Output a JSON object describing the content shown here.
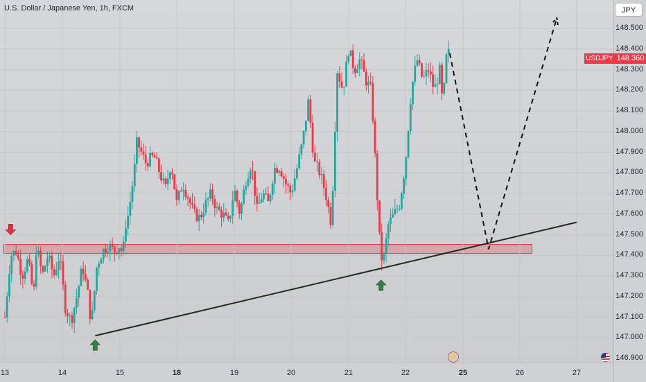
{
  "header": {
    "title": "U.S. Dollar / Japanese Yen, 1h, FXCM"
  },
  "currency_button": "JPY",
  "last_price": {
    "ticker": "USDJPY",
    "value": "148.360"
  },
  "colors": {
    "up": "#26a69a",
    "down": "#f23645",
    "zone": "#f23645",
    "trendline": "#1f2d1f",
    "arrow_up": "#3c7a46",
    "arrow_down": "#e8303b"
  },
  "icons": {
    "flash": "flash-icon",
    "flag": "us-flag-icon"
  },
  "chart_data": {
    "type": "candlestick",
    "symbol": "USDJPY",
    "interval": "1h",
    "ylim": [
      146.89,
      148.56
    ],
    "y_ticks": [
      "148.500",
      "148.400",
      "148.300",
      "148.200",
      "148.100",
      "148.000",
      "147.900",
      "147.800",
      "147.700",
      "147.600",
      "147.500",
      "147.400",
      "147.300",
      "147.200",
      "147.100",
      "147.000",
      "146.900"
    ],
    "x_ticks": [
      {
        "label": "13",
        "x": 0
      },
      {
        "label": "14",
        "x": 1
      },
      {
        "label": "15",
        "x": 2
      },
      {
        "label": "18",
        "x": 3,
        "bold": true
      },
      {
        "label": "19",
        "x": 4
      },
      {
        "label": "20",
        "x": 5
      },
      {
        "label": "21",
        "x": 6
      },
      {
        "label": "22",
        "x": 7
      },
      {
        "label": "25",
        "x": 8,
        "bold": true
      },
      {
        "label": "26",
        "x": 9
      },
      {
        "label": "27",
        "x": 10
      }
    ],
    "support_zone": [
      147.405,
      147.455
    ],
    "trendline": [
      {
        "x": 1.57,
        "y": 147.01
      },
      {
        "x": 10.65,
        "y": 147.56
      }
    ],
    "projection": [
      {
        "x": 7.77,
        "y": 148.38
      },
      {
        "x": 8.45,
        "y": 147.43
      },
      {
        "x": 9.65,
        "y": 148.55
      }
    ],
    "markers": [
      {
        "type": "down",
        "x": 0.1,
        "y": 147.5
      },
      {
        "type": "up",
        "x": 1.57,
        "y": 146.99
      },
      {
        "type": "up",
        "x": 6.57,
        "y": 147.28
      }
    ],
    "close_path": [
      [
        0.0,
        147.1
      ],
      [
        0.1,
        147.4
      ],
      [
        0.2,
        147.42
      ],
      [
        0.3,
        147.3
      ],
      [
        0.4,
        147.38
      ],
      [
        0.5,
        147.2
      ],
      [
        0.55,
        147.45
      ],
      [
        0.65,
        147.3
      ],
      [
        0.75,
        147.4
      ],
      [
        0.85,
        147.3
      ],
      [
        0.95,
        147.4
      ],
      [
        1.05,
        147.15
      ],
      [
        1.15,
        147.08
      ],
      [
        1.25,
        147.2
      ],
      [
        1.35,
        147.35
      ],
      [
        1.45,
        147.2
      ],
      [
        1.5,
        147.06
      ],
      [
        1.6,
        147.35
      ],
      [
        1.7,
        147.42
      ],
      [
        1.8,
        147.45
      ],
      [
        1.9,
        147.42
      ],
      [
        2.0,
        147.45
      ],
      [
        2.05,
        147.4
      ],
      [
        2.1,
        147.55
      ],
      [
        2.15,
        147.6
      ],
      [
        2.25,
        147.8
      ],
      [
        2.3,
        147.95
      ],
      [
        2.45,
        147.85
      ],
      [
        2.6,
        147.88
      ],
      [
        2.7,
        147.8
      ],
      [
        2.8,
        147.72
      ],
      [
        2.9,
        147.85
      ],
      [
        3.0,
        147.65
      ],
      [
        3.1,
        147.75
      ],
      [
        3.2,
        147.68
      ],
      [
        3.3,
        147.6
      ],
      [
        3.4,
        147.58
      ],
      [
        3.5,
        147.65
      ],
      [
        3.6,
        147.7
      ],
      [
        3.7,
        147.62
      ],
      [
        3.8,
        147.6
      ],
      [
        3.9,
        147.55
      ],
      [
        4.0,
        147.72
      ],
      [
        4.1,
        147.6
      ],
      [
        4.2,
        147.76
      ],
      [
        4.3,
        147.85
      ],
      [
        4.4,
        147.62
      ],
      [
        4.5,
        147.7
      ],
      [
        4.6,
        147.65
      ],
      [
        4.7,
        147.82
      ],
      [
        4.8,
        147.83
      ],
      [
        4.9,
        147.75
      ],
      [
        5.0,
        147.7
      ],
      [
        5.1,
        147.82
      ],
      [
        5.2,
        147.95
      ],
      [
        5.3,
        148.15
      ],
      [
        5.4,
        147.85
      ],
      [
        5.5,
        147.8
      ],
      [
        5.6,
        147.7
      ],
      [
        5.7,
        147.55
      ],
      [
        5.8,
        148.3
      ],
      [
        5.9,
        148.2
      ],
      [
        6.0,
        148.4
      ],
      [
        6.1,
        148.3
      ],
      [
        6.2,
        148.35
      ],
      [
        6.3,
        148.25
      ],
      [
        6.4,
        148.2
      ],
      [
        6.5,
        147.7
      ],
      [
        6.55,
        147.45
      ],
      [
        6.6,
        147.35
      ],
      [
        6.7,
        147.55
      ],
      [
        6.8,
        147.6
      ],
      [
        6.9,
        147.65
      ],
      [
        7.0,
        147.85
      ],
      [
        7.1,
        148.2
      ],
      [
        7.2,
        148.35
      ],
      [
        7.3,
        148.25
      ],
      [
        7.4,
        148.3
      ],
      [
        7.5,
        148.2
      ],
      [
        7.6,
        148.3
      ],
      [
        7.65,
        148.1
      ],
      [
        7.7,
        148.35
      ],
      [
        7.75,
        148.38
      ]
    ]
  }
}
